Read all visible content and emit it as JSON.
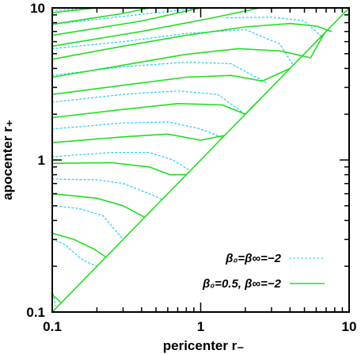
{
  "chart_data": {
    "type": "line",
    "title": "",
    "xlabel": "pericenter r₋",
    "ylabel": "apocenter r₊",
    "x_scale": "log",
    "y_scale": "log",
    "xlim": [
      0.1,
      10
    ],
    "ylim": [
      0.1,
      10
    ],
    "grid": false,
    "x_ticks": [
      {
        "value": 0.1,
        "label": "0.1"
      },
      {
        "value": 1,
        "label": "1"
      },
      {
        "value": 10,
        "label": "10"
      }
    ],
    "y_ticks": [
      {
        "value": 0.1,
        "label": "0.1"
      },
      {
        "value": 1,
        "label": "1"
      },
      {
        "value": 10,
        "label": "10"
      }
    ],
    "legend_placement": "bottom-right",
    "colors": {
      "dotted": "#33ccff",
      "solid": "#22dd22",
      "axes": "#000000"
    },
    "series": [
      {
        "name": "β₀=β∞=−2",
        "style": "dotted",
        "curves": [
          [
            [
              0.1,
              0.14
            ],
            [
              0.105,
              0.11
            ]
          ],
          [
            [
              0.1,
              0.3
            ],
            [
              0.12,
              0.28
            ],
            [
              0.16,
              0.22
            ],
            [
              0.2,
              0.2
            ]
          ],
          [
            [
              0.1,
              0.5
            ],
            [
              0.15,
              0.48
            ],
            [
              0.22,
              0.43
            ],
            [
              0.3,
              0.3
            ]
          ],
          [
            [
              0.1,
              0.75
            ],
            [
              0.2,
              0.74
            ],
            [
              0.3,
              0.7
            ],
            [
              0.45,
              0.6
            ],
            [
              0.55,
              0.55
            ]
          ],
          [
            [
              0.1,
              1.05
            ],
            [
              0.25,
              1.12
            ],
            [
              0.45,
              1.12
            ],
            [
              0.65,
              1.0
            ],
            [
              0.85,
              0.85
            ]
          ],
          [
            [
              0.1,
              1.6
            ],
            [
              0.3,
              1.75
            ],
            [
              0.6,
              1.78
            ],
            [
              1.0,
              1.6
            ],
            [
              1.4,
              1.4
            ]
          ],
          [
            [
              0.1,
              2.4
            ],
            [
              0.3,
              2.7
            ],
            [
              0.7,
              2.85
            ],
            [
              1.3,
              2.7
            ],
            [
              2.0,
              2.0
            ]
          ],
          [
            [
              0.1,
              3.6
            ],
            [
              0.3,
              4.1
            ],
            [
              0.8,
              4.4
            ],
            [
              1.6,
              4.3
            ],
            [
              2.8,
              3.2
            ]
          ],
          [
            [
              0.1,
              5.4
            ],
            [
              0.3,
              6.0
            ],
            [
              0.8,
              6.8
            ],
            [
              2.0,
              7.2
            ],
            [
              3.4,
              5.8
            ],
            [
              4.2,
              4.2
            ]
          ],
          [
            [
              0.1,
              7.8
            ],
            [
              0.3,
              8.8
            ],
            [
              1.0,
              10.0
            ]
          ],
          [
            [
              0.2,
              10.0
            ],
            [
              0.1,
              9.6
            ]
          ],
          [
            [
              1.5,
              8.6
            ],
            [
              3.0,
              8.7
            ],
            [
              5.0,
              8.2
            ],
            [
              6.5,
              6.5
            ]
          ]
        ]
      },
      {
        "name": "β₀=0.5, β∞=−2",
        "style": "solid",
        "curves": [
          [
            [
              0.1,
              0.13
            ],
            [
              0.115,
              0.115
            ]
          ],
          [
            [
              0.1,
              0.33
            ],
            [
              0.14,
              0.3
            ],
            [
              0.19,
              0.26
            ],
            [
              0.23,
              0.23
            ]
          ],
          [
            [
              0.1,
              0.6
            ],
            [
              0.2,
              0.56
            ],
            [
              0.3,
              0.5
            ],
            [
              0.42,
              0.42
            ]
          ],
          [
            [
              0.1,
              0.95
            ],
            [
              0.25,
              0.96
            ],
            [
              0.45,
              0.9
            ],
            [
              0.62,
              0.8
            ],
            [
              0.8,
              0.8
            ]
          ],
          [
            [
              0.1,
              1.3
            ],
            [
              0.3,
              1.42
            ],
            [
              0.6,
              1.48
            ],
            [
              1.0,
              1.35
            ],
            [
              1.45,
              1.45
            ]
          ],
          [
            [
              0.1,
              1.9
            ],
            [
              0.3,
              2.15
            ],
            [
              0.7,
              2.35
            ],
            [
              1.4,
              2.3
            ],
            [
              2.0,
              2.0
            ],
            [
              2.45,
              2.45
            ]
          ],
          [
            [
              0.1,
              2.7
            ],
            [
              0.3,
              3.1
            ],
            [
              0.8,
              3.5
            ],
            [
              1.6,
              3.6
            ],
            [
              2.6,
              3.3
            ],
            [
              4.0,
              4.0
            ]
          ],
          [
            [
              0.1,
              3.5
            ],
            [
              0.3,
              4.2
            ],
            [
              0.8,
              4.95
            ],
            [
              1.8,
              5.4
            ],
            [
              3.5,
              5.2
            ],
            [
              5.5,
              4.7
            ],
            [
              6.8,
              6.8
            ]
          ],
          [
            [
              0.1,
              4.6
            ],
            [
              0.3,
              5.6
            ],
            [
              0.8,
              6.6
            ],
            [
              2.0,
              7.5
            ],
            [
              4.0,
              7.9
            ],
            [
              6.0,
              7.6
            ],
            [
              7.6,
              7.0
            ]
          ],
          [
            [
              0.1,
              5.6
            ],
            [
              0.4,
              7.0
            ],
            [
              1.2,
              8.6
            ],
            [
              2.5,
              10.0
            ]
          ],
          [
            [
              0.1,
              6.6
            ],
            [
              0.4,
              8.2
            ],
            [
              1.0,
              10.0
            ]
          ],
          [
            [
              0.1,
              7.8
            ],
            [
              0.3,
              9.2
            ],
            [
              0.45,
              10.0
            ]
          ],
          [
            [
              0.1,
              9.3
            ],
            [
              0.2,
              10.0
            ]
          ],
          [
            [
              0.1,
              0.1
            ],
            [
              10.0,
              10.0
            ]
          ]
        ]
      }
    ],
    "legend": [
      {
        "label": "β₀=β∞=−2",
        "style": "dotted"
      },
      {
        "label": "β₀=0.5, β∞=−2",
        "style": "solid"
      }
    ]
  }
}
